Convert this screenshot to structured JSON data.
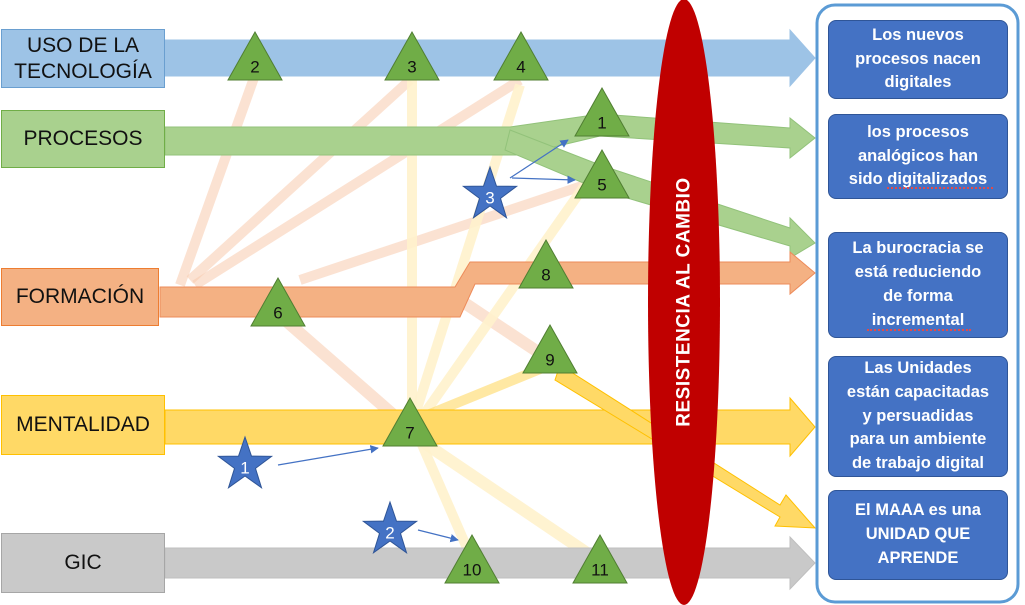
{
  "categories": [
    {
      "id": "tecnologia",
      "label": "USO DE LA\nTECNOLOGÍA",
      "color": "#9dc3e6"
    },
    {
      "id": "procesos",
      "label": "PROCESOS",
      "color": "#a9d18e"
    },
    {
      "id": "formacion",
      "label": "FORMACIÓN",
      "color": "#f4b183"
    },
    {
      "id": "mentalidad",
      "label": "MENTALIDAD",
      "color": "#ffd966"
    },
    {
      "id": "gic",
      "label": "GIC",
      "color": "#c9c9c9"
    }
  ],
  "triangles": [
    "1",
    "2",
    "3",
    "4",
    "5",
    "6",
    "7",
    "8",
    "9",
    "10",
    "11"
  ],
  "stars": [
    "1",
    "2",
    "3"
  ],
  "barrier": {
    "label": "RESISTENCIA AL CAMBIO",
    "color": "#c00000"
  },
  "outcomes": [
    "Los nuevos\nprocesos nacen\ndigitales",
    "los procesos\nanalógicos han\nsido digitalizados",
    "La burocracia se\nestá reduciendo\nde forma\nincremental",
    "Las Unidades\nestán capacitadas\ny persuadidas\npara un ambiente\nde trabajo digital",
    "El MAAA es una\nUNIDAD QUE\nAPRENDE"
  ],
  "colors": {
    "triangle": "#70ad47",
    "star": "#4472c4",
    "outcome": "#4472c4"
  }
}
